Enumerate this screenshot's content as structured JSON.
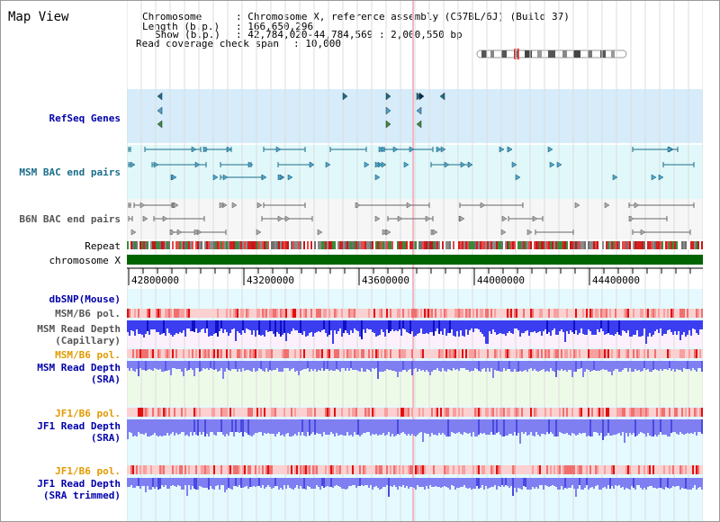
{
  "header": {
    "title": "Map View",
    "chromosome_label": "Chromosome",
    "chromosome_value": ": Chromosome X, reference assembly (C57BL/6J) (Build 37)",
    "length_label": "Length (b.p.)",
    "length_value": ": 166,650,296",
    "show_label": "Show (b.p.)",
    "show_value": ": 42,784,020-44,784,569 : 2,000,550 bp",
    "span_label": "Read coverage check span",
    "span_value": ": 10,000"
  },
  "tracks": {
    "refseq": "RefSeq Genes",
    "msm_bac": "MSM BAC end pairs",
    "b6n_bac": "B6N BAC end pairs",
    "repeat": "Repeat",
    "chromosome": "chromosome X",
    "dbsnp": "dbSNP(Mouse)",
    "msm_b6_pol_1": "MSM/B6 pol.",
    "msm_depth_cap_1": "MSM Read Depth",
    "msm_depth_cap_2": "(Capillary)",
    "msm_b6_pol_2": "MSM/B6 pol.",
    "msm_depth_sra_1": "MSM Read Depth",
    "msm_depth_sra_2": "(SRA)",
    "jf1_b6_pol_1": "JF1/B6 pol.",
    "jf1_depth_sra_1": "JF1 Read Depth",
    "jf1_depth_sra_2": "(SRA)",
    "jf1_b6_pol_2": "JF1/B6 pol.",
    "jf1_depth_trim_1": "JF1 Read Depth",
    "jf1_depth_trim_2": "(SRA trimmed)"
  },
  "ruler": {
    "ticks": [
      "42800000",
      "43200000",
      "43600000",
      "44000000",
      "44400000"
    ],
    "start": 42784020,
    "end": 44784569
  },
  "colors": {
    "refseq_bg": "#d6ecfa",
    "msm_bg": "#e0f8fa",
    "b6n_bg": "#f6f6f6",
    "chromosome": "#006400",
    "blue_label": "#0000aa",
    "teal_label": "#1a6d8a",
    "orange_label": "#e29a00",
    "gray_label": "#555555",
    "depth_blue": "#3b3ef0",
    "depth_light": "#7f7ff2"
  }
}
